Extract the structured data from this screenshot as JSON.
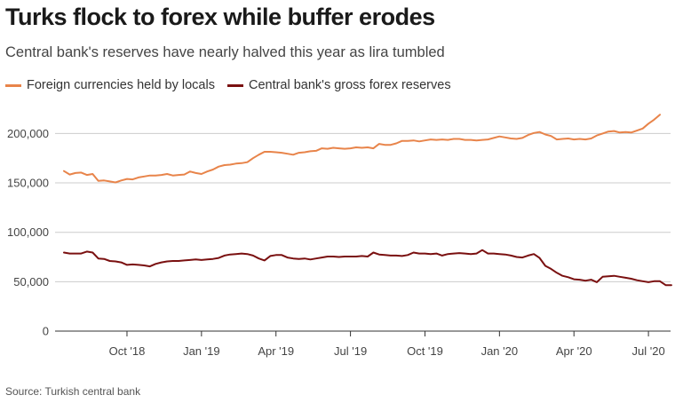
{
  "title": "Turks flock to forex while buffer erodes",
  "subtitle": "Central bank's reserves have nearly halved this year as lira tumbled",
  "source": "Source: Turkish central bank",
  "colors": {
    "locals": "#e8844a",
    "reserves": "#7a1010",
    "grid": "#cccccc",
    "axis": "#333333"
  },
  "chart_data": {
    "type": "line",
    "title": "Turks flock to forex while buffer erodes",
    "xlabel": "",
    "ylabel": "",
    "ylim": [
      0,
      230000
    ],
    "yticks": [
      0,
      50000,
      100000,
      150000,
      200000
    ],
    "ytick_labels": [
      "0",
      "50,000",
      "100,000",
      "150,000",
      "200,000"
    ],
    "xtick_labels": [
      "Oct '18",
      "Jan '19",
      "Apr '19",
      "Jul '19",
      "Oct '19",
      "Jan '20",
      "Apr '20",
      "Jul '20"
    ],
    "xtick_index": [
      11,
      24,
      37,
      50,
      63,
      76,
      89,
      102
    ],
    "legend_position": "top-left",
    "series": [
      {
        "name": "Foreign currencies held by locals",
        "key": "locals",
        "values": [
          162000,
          158500,
          160000,
          160500,
          158000,
          159000,
          152000,
          152500,
          151500,
          150500,
          152500,
          154000,
          153500,
          155500,
          156500,
          157500,
          157500,
          158000,
          159000,
          157500,
          158000,
          158500,
          161500,
          160000,
          159000,
          161500,
          163500,
          166500,
          168000,
          168500,
          169500,
          170000,
          171000,
          175000,
          178500,
          181500,
          181500,
          181000,
          180500,
          179500,
          178500,
          180500,
          181000,
          182000,
          182500,
          185000,
          184500,
          185500,
          185000,
          184500,
          185000,
          186000,
          185500,
          186000,
          185000,
          189500,
          188500,
          188500,
          190000,
          192500,
          192500,
          193000,
          192000,
          193000,
          194000,
          193500,
          194000,
          193500,
          194500,
          194500,
          193500,
          193500,
          193000,
          193500,
          194000,
          195500,
          197000,
          196000,
          195000,
          194500,
          195500,
          198500,
          200500,
          201500,
          199000,
          197500,
          194000,
          194500,
          195000,
          194000,
          194500,
          194000,
          195000,
          198000,
          200000,
          202000,
          202500,
          201000,
          201500,
          201000,
          203000,
          205000,
          210000,
          214000,
          219000
        ]
      },
      {
        "name": "Central bank's gross forex reserves",
        "key": "reserves",
        "values": [
          79500,
          78500,
          78500,
          78500,
          80500,
          79500,
          73500,
          73000,
          71000,
          70500,
          69500,
          67000,
          67500,
          67000,
          66500,
          65500,
          68000,
          69500,
          70500,
          71000,
          71000,
          71500,
          72000,
          72500,
          72000,
          72500,
          73000,
          74000,
          76500,
          77500,
          78000,
          78500,
          78000,
          76500,
          73500,
          71500,
          76000,
          77000,
          77000,
          74500,
          73500,
          73000,
          73500,
          72500,
          73500,
          74500,
          75500,
          75500,
          75000,
          75500,
          75500,
          75500,
          76000,
          75500,
          79500,
          77500,
          77000,
          76500,
          76500,
          76000,
          77000,
          79500,
          78500,
          78500,
          78000,
          78500,
          76500,
          78000,
          78500,
          79000,
          78500,
          78000,
          78500,
          82000,
          78500,
          78500,
          78000,
          77500,
          76500,
          75000,
          74500,
          76500,
          78000,
          74000,
          66000,
          63000,
          59000,
          56000,
          54500,
          52500,
          52000,
          51000,
          52000,
          49500,
          55000,
          55500,
          56000,
          55000,
          54000,
          53000,
          51500,
          50500,
          49500,
          50500,
          50500,
          46500,
          46500
        ]
      }
    ]
  }
}
